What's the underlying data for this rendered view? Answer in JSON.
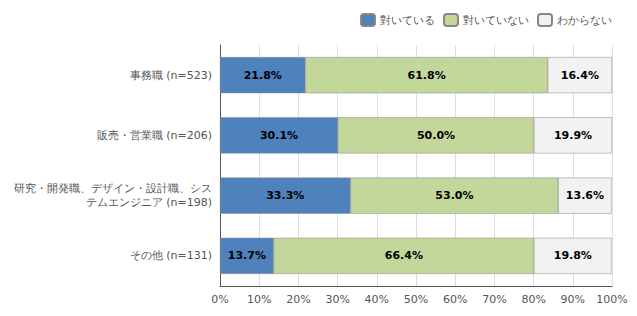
{
  "chart_data": {
    "type": "bar",
    "orientation": "horizontal",
    "stacked": true,
    "categories": [
      "事務職 (n=523)",
      "販売・営業職 (n=206)",
      "研究・開発職、デザイン・設計職、シス\nテムエンジニア (n=198)",
      "その他 (n=131)"
    ],
    "series": [
      {
        "name": "對いている",
        "color": "#4F81BD",
        "values": [
          21.8,
          30.1,
          33.3,
          13.7
        ],
        "value_labels": [
          "21.8%",
          "30.1%",
          "33.3%",
          "13.7%"
        ]
      },
      {
        "name": "對いていない",
        "color": "#C4D79B",
        "values": [
          61.8,
          50.0,
          53.0,
          66.4
        ],
        "value_labels": [
          "61.8%",
          "50.0%",
          "53.0%",
          "66.4%"
        ]
      },
      {
        "name": "わからない",
        "color": "#F2F2F2",
        "values": [
          16.4,
          19.9,
          13.6,
          19.8
        ],
        "value_labels": [
          "16.4%",
          "19.9%",
          "13.6%",
          "19.8%"
        ]
      }
    ],
    "xlim": [
      0,
      100
    ],
    "xticks": [
      {
        "value": 0,
        "label": "0%"
      },
      {
        "value": 10,
        "label": "10%"
      },
      {
        "value": 20,
        "label": "20%"
      },
      {
        "value": 30,
        "label": "30%"
      },
      {
        "value": 40,
        "label": "40%"
      },
      {
        "value": 50,
        "label": "50%"
      },
      {
        "value": 60,
        "label": "60%"
      },
      {
        "value": 70,
        "label": "70%"
      },
      {
        "value": 80,
        "label": "80%"
      },
      {
        "value": 90,
        "label": "90%"
      },
      {
        "value": 100,
        "label": "100%"
      }
    ],
    "grid": true,
    "legend": "upper right",
    "data_labels": true
  }
}
